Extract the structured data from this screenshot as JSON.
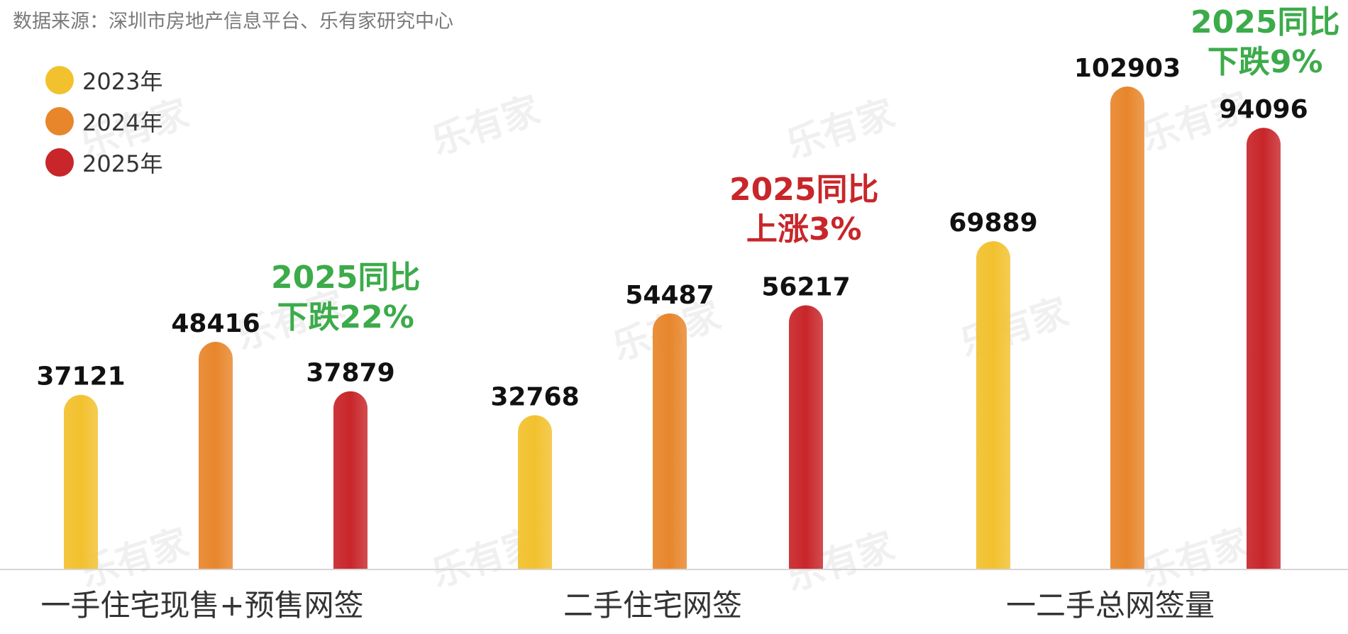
{
  "source_note": "数据来源：深圳市房地产信息平台、乐有家研究中心",
  "watermark": "乐有家",
  "colors": {
    "2023": "#f2c12e",
    "2024": "#e8862c",
    "2025": "#c8262a",
    "down": "#3cab4a",
    "up": "#c8262a"
  },
  "annotations": [
    {
      "line1": "2025同比",
      "line2": "下跌22%",
      "tone": "down"
    },
    {
      "line1": "2025同比",
      "line2": "上涨3%",
      "tone": "up"
    },
    {
      "line1": "2025同比",
      "line2": "下跌9%",
      "tone": "down"
    }
  ],
  "chart_data": {
    "type": "bar",
    "categories": [
      "一手住宅现售+预售网签",
      "二手住宅网签",
      "一二手总网签量"
    ],
    "series": [
      {
        "name": "2023年",
        "values": [
          37121,
          32768,
          69889
        ]
      },
      {
        "name": "2024年",
        "values": [
          48416,
          54487,
          102903
        ]
      },
      {
        "name": "2025年",
        "values": [
          37879,
          56217,
          94096
        ]
      }
    ],
    "legend_position": "top-left",
    "grid": false
  }
}
